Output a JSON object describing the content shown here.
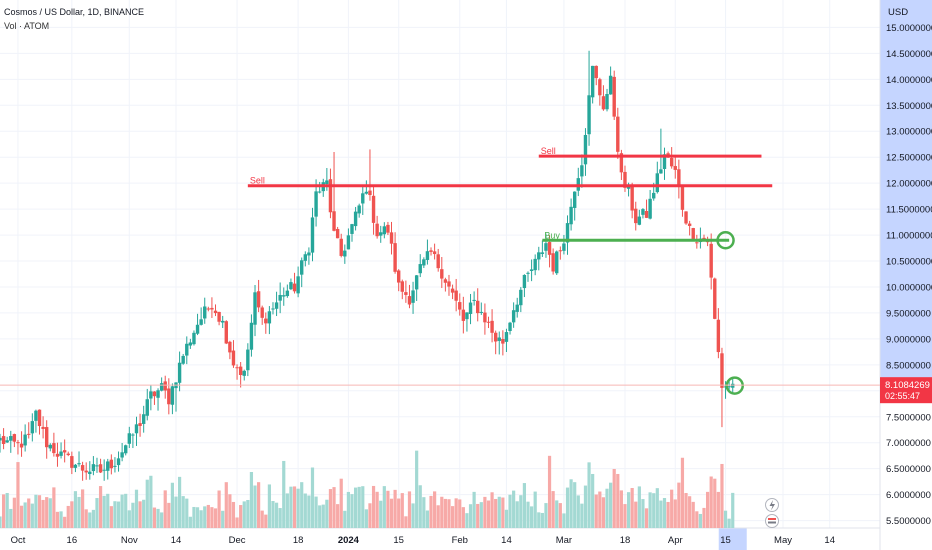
{
  "header": {
    "title": "Cosmos / US Dollar, 1D, BINANCE",
    "volume_label": "Vol · ATOM",
    "currency": "USD"
  },
  "price_label": {
    "value": "8.1084269",
    "countdown": "02:55:47",
    "color": "#f23645"
  },
  "colors": {
    "up": "#26a69a",
    "down": "#ef5350",
    "vol_up": "#a3d9d3",
    "vol_down": "#f7a9a7",
    "sell_line": "#f23645",
    "buy_line": "#4caf50",
    "circle": "#4caf50",
    "axis_highlight": "#c5d5ff"
  },
  "annotations": {
    "sell_1": "Sell",
    "sell_2": "Sell",
    "buy": "Buy"
  },
  "chart_data": {
    "type": "candlestick",
    "title": "Cosmos / US Dollar, 1D, BINANCE",
    "y_axis": {
      "ticks": [
        "15.0000000",
        "14.5000000",
        "14.0000000",
        "13.5000000",
        "13.0000000",
        "12.5000000",
        "12.0000000",
        "11.5000000",
        "11.0000000",
        "10.5000000",
        "10.0000000",
        "9.5000000",
        "9.0000000",
        "8.5000000",
        "8.0000000",
        "7.5000000",
        "7.0000000",
        "6.5000000",
        "6.0000000",
        "5.5000000"
      ],
      "range": [
        5.4,
        15.3
      ]
    },
    "x_axis": {
      "ticks": [
        "Oct",
        "16",
        "Nov",
        "14",
        "Dec",
        "18",
        "2024",
        "15",
        "Feb",
        "14",
        "Mar",
        "18",
        "Apr",
        "15",
        "May",
        "14"
      ],
      "range": [
        "2023-09-26",
        "2024-05-28"
      ]
    },
    "levels": [
      {
        "label": "Sell",
        "price": 11.95,
        "from": "2023-12-04",
        "to": "2024-04-28"
      },
      {
        "label": "Sell",
        "price": 12.52,
        "from": "2024-02-23",
        "to": "2024-04-25"
      },
      {
        "label": "Buy",
        "price": 10.9,
        "from": "2024-02-24",
        "to": "2024-04-16"
      }
    ],
    "waypoints": [
      [
        "2023-09-26",
        7.05
      ],
      [
        "2023-10-01",
        6.95
      ],
      [
        "2023-10-04",
        7.1
      ],
      [
        "2023-10-06",
        7.55
      ],
      [
        "2023-10-09",
        7.0
      ],
      [
        "2023-10-13",
        6.75
      ],
      [
        "2023-10-19",
        6.5
      ],
      [
        "2023-10-24",
        6.45
      ],
      [
        "2023-10-28",
        6.65
      ],
      [
        "2023-11-01",
        7.05
      ],
      [
        "2023-11-04",
        7.4
      ],
      [
        "2023-11-07",
        7.9
      ],
      [
        "2023-11-10",
        8.05
      ],
      [
        "2023-11-12",
        7.85
      ],
      [
        "2023-11-16",
        8.7
      ],
      [
        "2023-11-20",
        9.3
      ],
      [
        "2023-11-24",
        9.7
      ],
      [
        "2023-11-27",
        9.3
      ],
      [
        "2023-11-30",
        8.55
      ],
      [
        "2023-12-03",
        8.3
      ],
      [
        "2023-12-06",
        9.8
      ],
      [
        "2023-12-08",
        9.35
      ],
      [
        "2023-12-11",
        9.6
      ],
      [
        "2023-12-14",
        9.9
      ],
      [
        "2023-12-17",
        10.0
      ],
      [
        "2023-12-21",
        10.8
      ],
      [
        "2023-12-23",
        11.8
      ],
      [
        "2023-12-26",
        12.0
      ],
      [
        "2023-12-28",
        11.0
      ],
      [
        "2023-12-30",
        10.6
      ],
      [
        "2024-01-03",
        11.35
      ],
      [
        "2024-01-06",
        11.95
      ],
      [
        "2024-01-09",
        11.05
      ],
      [
        "2024-01-12",
        11.1
      ],
      [
        "2024-01-15",
        10.0
      ],
      [
        "2024-01-18",
        9.8
      ],
      [
        "2024-01-21",
        10.35
      ],
      [
        "2024-01-24",
        10.65
      ],
      [
        "2024-01-27",
        10.3
      ],
      [
        "2024-01-30",
        9.85
      ],
      [
        "2024-02-02",
        9.35
      ],
      [
        "2024-02-05",
        9.7
      ],
      [
        "2024-02-08",
        9.4
      ],
      [
        "2024-02-11",
        9.0
      ],
      [
        "2024-02-13",
        8.95
      ],
      [
        "2024-02-16",
        9.6
      ],
      [
        "2024-02-19",
        10.1
      ],
      [
        "2024-02-22",
        10.45
      ],
      [
        "2024-02-25",
        10.85
      ],
      [
        "2024-02-27",
        10.4
      ],
      [
        "2024-02-29",
        10.75
      ],
      [
        "2024-03-02",
        11.2
      ],
      [
        "2024-03-04",
        11.95
      ],
      [
        "2024-03-06",
        12.45
      ],
      [
        "2024-03-09",
        14.2
      ],
      [
        "2024-03-12",
        13.5
      ],
      [
        "2024-03-14",
        13.95
      ],
      [
        "2024-03-17",
        12.1
      ],
      [
        "2024-03-19",
        11.8
      ],
      [
        "2024-03-21",
        11.3
      ],
      [
        "2024-03-24",
        11.4
      ],
      [
        "2024-03-27",
        12.1
      ],
      [
        "2024-03-29",
        12.55
      ],
      [
        "2024-04-01",
        12.2
      ],
      [
        "2024-04-03",
        11.55
      ],
      [
        "2024-04-05",
        11.1
      ],
      [
        "2024-04-07",
        10.95
      ],
      [
        "2024-04-10",
        10.9
      ],
      [
        "2024-04-12",
        9.35
      ],
      [
        "2024-04-14",
        8.1
      ],
      [
        "2024-04-17",
        8.11
      ]
    ],
    "last_price": 8.1084269
  }
}
